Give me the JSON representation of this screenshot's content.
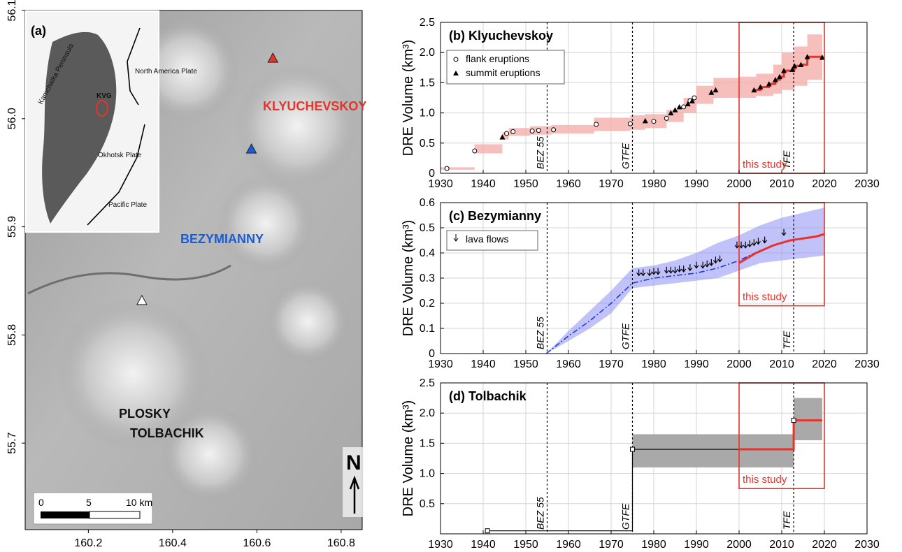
{
  "map": {
    "panel_label": "(a)",
    "xaxis": {
      "ticks": [
        "160.2",
        "160.4",
        "160.6",
        "160.8"
      ]
    },
    "yaxis": {
      "ticks": [
        "56.1",
        "56.0",
        "55.9",
        "55.8",
        "55.7"
      ]
    },
    "volcanoes": [
      {
        "name": "KLYUCHEVSKOY",
        "lon": 160.638,
        "lat": 56.056,
        "color": "#e8322a"
      },
      {
        "name": "BEZYMIANNY",
        "lon": 160.587,
        "lat": 55.972,
        "color": "#1a5bd6"
      },
      {
        "name": "PLOSKY",
        "lon": 160.327,
        "lat": 55.832,
        "color": "#ffffff"
      }
    ],
    "tolbachik_label": "TOLBACHIK",
    "north_label": "N",
    "scale": {
      "labels": [
        "0",
        "5",
        "10 km"
      ]
    },
    "inset": {
      "labels": [
        "Kamchatka Peninsula",
        "North America Plate",
        "KVG",
        "Okhotsk Plate",
        "Pacific Plate"
      ],
      "kvg_color": "#e8322a"
    }
  },
  "chart_data": [
    {
      "type": "step",
      "panel_label": "(b) Klyuchevskoy",
      "ylabel": "DRE Volume (km³)",
      "xlim": [
        1930,
        2030
      ],
      "ylim": [
        0,
        2.5
      ],
      "yticks": [
        "0",
        "0.5",
        "1.0",
        "1.5",
        "2.0",
        "2.5"
      ],
      "xticks": [
        "1930",
        "1940",
        "1950",
        "1960",
        "1970",
        "1980",
        "1990",
        "2000",
        "2010",
        "2020",
        "2030"
      ],
      "events": [
        {
          "x": 1955,
          "label": "BEZ 55"
        },
        {
          "x": 1975,
          "label": "GTFE"
        },
        {
          "x": 2012.8,
          "label": "TFE"
        }
      ],
      "legend": [
        "flank eruptions",
        "summit eruptions"
      ],
      "study_box": {
        "x": [
          2000,
          2020
        ],
        "y": [
          0,
          2.5
        ],
        "label": "this study"
      },
      "band_steps": [
        [
          1930,
          0.06,
          0.1
        ],
        [
          1938,
          0.33,
          0.48
        ],
        [
          1944.5,
          0.56,
          0.68
        ],
        [
          1946,
          0.62,
          0.75
        ],
        [
          1951,
          0.64,
          0.78
        ],
        [
          1956,
          0.66,
          0.8
        ],
        [
          1966,
          0.7,
          0.92
        ],
        [
          1974.5,
          0.72,
          0.96
        ],
        [
          1978,
          0.75,
          0.98
        ],
        [
          1983,
          0.85,
          1.05
        ],
        [
          1987,
          1.0,
          1.25
        ],
        [
          1990,
          1.15,
          1.45
        ],
        [
          1994,
          1.25,
          1.58
        ],
        [
          2000,
          1.25,
          1.6
        ],
        [
          2004,
          1.28,
          1.65
        ],
        [
          2008,
          1.32,
          1.8
        ],
        [
          2010,
          1.38,
          2.0
        ],
        [
          2013,
          1.45,
          2.1
        ],
        [
          2016,
          1.55,
          2.3
        ],
        [
          2019.5,
          1.55,
          2.3
        ]
      ],
      "flank": [
        [
          1931.5,
          0.08
        ],
        [
          1938,
          0.37
        ],
        [
          1945.5,
          0.66
        ],
        [
          1947,
          0.69
        ],
        [
          1951.5,
          0.7
        ],
        [
          1953,
          0.71
        ],
        [
          1956.5,
          0.72
        ],
        [
          1966.5,
          0.81
        ],
        [
          1974.5,
          0.82
        ],
        [
          1980,
          0.86
        ],
        [
          1983,
          0.91
        ],
        [
          1987,
          1.1
        ],
        [
          1988.5,
          1.2
        ],
        [
          1989.5,
          1.25
        ]
      ],
      "summit": [
        [
          1944.5,
          0.6
        ],
        [
          1978,
          0.87
        ],
        [
          1984,
          1.0
        ],
        [
          1985,
          1.05
        ],
        [
          1986,
          1.1
        ],
        [
          1988,
          1.15
        ],
        [
          1989,
          1.2
        ],
        [
          1993.5,
          1.34
        ],
        [
          1994.5,
          1.38
        ],
        [
          2003.5,
          1.38
        ],
        [
          2005,
          1.43
        ],
        [
          2007,
          1.48
        ],
        [
          2008.5,
          1.55
        ],
        [
          2009.5,
          1.6
        ],
        [
          2010.5,
          1.7
        ],
        [
          2012.5,
          1.72
        ],
        [
          2013,
          1.78
        ],
        [
          2014.5,
          1.8
        ],
        [
          2016,
          1.93
        ],
        [
          2019.5,
          1.92
        ]
      ],
      "study_line": [
        [
          2003.5,
          1.38
        ],
        [
          2005,
          1.43
        ],
        [
          2007,
          1.48
        ],
        [
          2008.5,
          1.55
        ],
        [
          2009.5,
          1.6
        ],
        [
          2010.5,
          1.7
        ],
        [
          2012.5,
          1.72
        ],
        [
          2013,
          1.78
        ],
        [
          2014.5,
          1.8
        ],
        [
          2016,
          1.93
        ],
        [
          2019.5,
          1.92
        ]
      ]
    },
    {
      "type": "line",
      "panel_label": "(c) Bezymianny",
      "ylabel": "DRE Volume (km³)",
      "xlim": [
        1930,
        2030
      ],
      "ylim": [
        0,
        0.6
      ],
      "yticks": [
        "0",
        "0.1",
        "0.2",
        "0.3",
        "0.4",
        "0.5",
        "0.6"
      ],
      "xticks": [
        "1930",
        "1940",
        "1950",
        "1960",
        "1970",
        "1980",
        "1990",
        "2000",
        "2010",
        "2020",
        "2030"
      ],
      "events": [
        {
          "x": 1955,
          "label": "BEZ 55"
        },
        {
          "x": 1975,
          "label": "GTFE"
        },
        {
          "x": 2012.8,
          "label": "TFE"
        }
      ],
      "legend": [
        "lava flows"
      ],
      "study_box": {
        "x": [
          2000,
          2020
        ],
        "y": [
          0.19,
          0.6
        ],
        "label": "this study"
      },
      "model": [
        [
          1954.8,
          0
        ],
        [
          1960,
          0.07
        ],
        [
          1965,
          0.13
        ],
        [
          1970,
          0.2
        ],
        [
          1975,
          0.28
        ],
        [
          1980,
          0.3
        ],
        [
          1985,
          0.31
        ],
        [
          1990,
          0.32
        ],
        [
          1995,
          0.34
        ],
        [
          2000,
          0.37
        ],
        [
          2005,
          0.41
        ],
        [
          2010,
          0.44
        ],
        [
          2015,
          0.46
        ],
        [
          2020,
          0.47
        ]
      ],
      "band": [
        [
          1954.8,
          0,
          0
        ],
        [
          1960,
          0.05,
          0.09
        ],
        [
          1965,
          0.1,
          0.17
        ],
        [
          1970,
          0.16,
          0.25
        ],
        [
          1975,
          0.26,
          0.34
        ],
        [
          1980,
          0.27,
          0.35
        ],
        [
          1985,
          0.28,
          0.37
        ],
        [
          1990,
          0.29,
          0.4
        ],
        [
          1995,
          0.3,
          0.44
        ],
        [
          2000,
          0.33,
          0.47
        ],
        [
          2005,
          0.36,
          0.51
        ],
        [
          2010,
          0.37,
          0.54
        ],
        [
          2015,
          0.38,
          0.56
        ],
        [
          2020,
          0.39,
          0.58
        ]
      ],
      "study_line": [
        [
          2000,
          0.36
        ],
        [
          2002,
          0.38
        ],
        [
          2004,
          0.4
        ],
        [
          2006,
          0.415
        ],
        [
          2008,
          0.43
        ],
        [
          2010,
          0.44
        ],
        [
          2012,
          0.45
        ],
        [
          2014,
          0.455
        ],
        [
          2016,
          0.46
        ],
        [
          2018,
          0.465
        ],
        [
          2020,
          0.475
        ]
      ],
      "lava_flows": [
        [
          1976.5,
          0.31
        ],
        [
          1977.5,
          0.31
        ],
        [
          1979,
          0.31
        ],
        [
          1980,
          0.315
        ],
        [
          1981,
          0.315
        ],
        [
          1983,
          0.32
        ],
        [
          1984,
          0.32
        ],
        [
          1985,
          0.32
        ],
        [
          1986,
          0.325
        ],
        [
          1987,
          0.325
        ],
        [
          1988.5,
          0.33
        ],
        [
          1990,
          0.34
        ],
        [
          1991.5,
          0.34
        ],
        [
          1992.5,
          0.345
        ],
        [
          1993.5,
          0.35
        ],
        [
          1994.5,
          0.36
        ],
        [
          1995.5,
          0.365
        ],
        [
          1999.5,
          0.42
        ],
        [
          2000.5,
          0.42
        ],
        [
          2001.5,
          0.42
        ],
        [
          2002.5,
          0.425
        ],
        [
          2003.5,
          0.43
        ],
        [
          2004.5,
          0.435
        ],
        [
          2006,
          0.44
        ],
        [
          2010.5,
          0.47
        ]
      ]
    },
    {
      "type": "step",
      "panel_label": "(d) Tolbachik",
      "ylabel": "DRE Volume (km³)",
      "xlim": [
        1930,
        2030
      ],
      "ylim": [
        0,
        2.5
      ],
      "yticks": [
        "0.5",
        "1.0",
        "1.5",
        "2.0",
        "2.5"
      ],
      "xticks": [
        "1930",
        "1940",
        "1950",
        "1960",
        "1970",
        "1980",
        "1990",
        "2000",
        "2010",
        "2020",
        "2030"
      ],
      "events": [
        {
          "x": 1955,
          "label": "BEZ 55"
        },
        {
          "x": 1975,
          "label": "GTFE"
        },
        {
          "x": 2012.8,
          "label": "TFE"
        }
      ],
      "study_box": {
        "x": [
          2000,
          2020
        ],
        "y": [
          0.75,
          2.5
        ],
        "label": "this study"
      },
      "bands": [
        {
          "x": [
            1975,
            2012.8
          ],
          "y": [
            1.1,
            1.65
          ]
        },
        {
          "x": [
            2012.8,
            2019.5
          ],
          "y": [
            1.55,
            2.25
          ]
        }
      ],
      "steps": [
        [
          1941,
          0.05
        ],
        [
          1975,
          0.05
        ],
        [
          1975,
          1.4
        ],
        [
          2012.8,
          1.4
        ],
        [
          2012.8,
          1.88
        ],
        [
          2019.5,
          1.88
        ]
      ],
      "markers": [
        [
          1941,
          0.05
        ],
        [
          1975,
          1.4
        ],
        [
          2012.8,
          1.88
        ]
      ],
      "study_line": [
        [
          2000,
          1.4
        ],
        [
          2012.8,
          1.4
        ],
        [
          2012.8,
          1.88
        ],
        [
          2019.5,
          1.88
        ]
      ]
    }
  ]
}
